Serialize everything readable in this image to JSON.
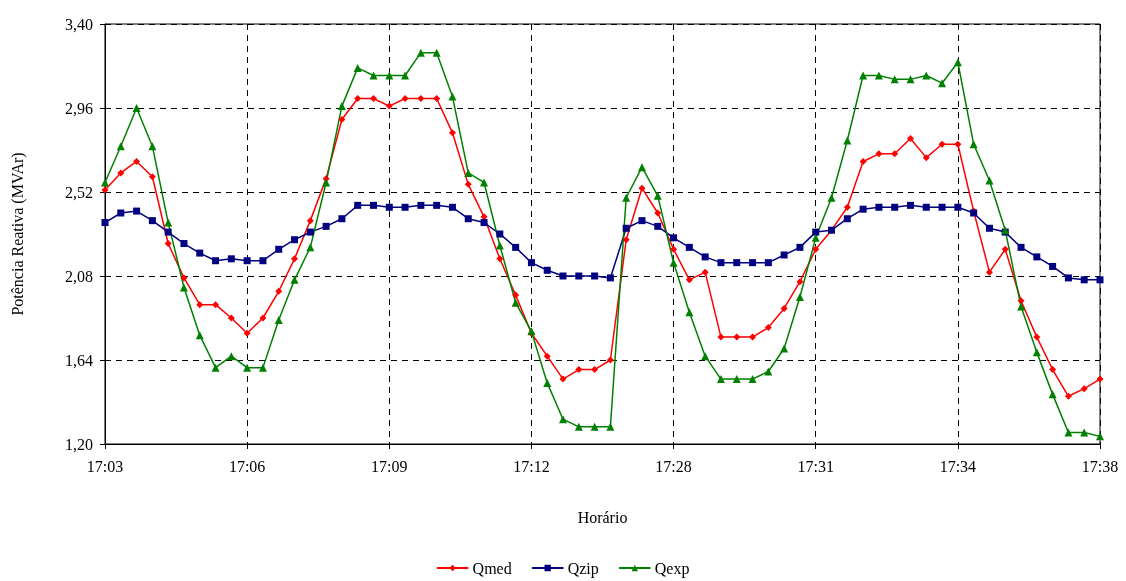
{
  "chart_data": {
    "type": "line",
    "xlabel": "Horário",
    "ylabel": "Potência Reativa (MVAr)",
    "categories": [
      "17:03",
      null,
      null,
      null,
      null,
      null,
      null,
      null,
      null,
      "17:06",
      null,
      null,
      null,
      null,
      null,
      null,
      null,
      null,
      "17:09",
      null,
      null,
      null,
      null,
      null,
      null,
      null,
      null,
      "17:12",
      null,
      null,
      null,
      null,
      null,
      null,
      null,
      null,
      "17:28",
      null,
      null,
      null,
      null,
      null,
      null,
      null,
      null,
      "17:31",
      null,
      null,
      null,
      null,
      null,
      null,
      null,
      null,
      "17:34",
      null,
      null,
      null,
      null,
      null,
      null,
      null,
      null,
      "17:38"
    ],
    "series": [
      {
        "name": "Qmed",
        "color": "#ff0000",
        "marker": "diamond",
        "values": [
          2.53,
          2.62,
          2.68,
          2.6,
          2.25,
          2.07,
          1.93,
          1.93,
          1.86,
          1.78,
          1.86,
          2.0,
          2.17,
          2.37,
          2.59,
          2.9,
          3.01,
          3.01,
          2.97,
          3.01,
          3.01,
          3.01,
          2.83,
          2.56,
          2.39,
          2.17,
          1.98,
          1.78,
          1.66,
          1.54,
          1.59,
          1.59,
          1.64,
          2.27,
          2.54,
          2.41,
          2.22,
          2.06,
          2.1,
          1.76,
          1.76,
          1.76,
          1.81,
          1.91,
          2.05,
          2.22,
          2.32,
          2.44,
          2.68,
          2.72,
          2.72,
          2.8,
          2.7,
          2.77,
          2.77,
          2.42,
          2.1,
          2.22,
          1.95,
          1.76,
          1.59,
          1.45,
          1.49,
          1.54
        ]
      },
      {
        "name": "Qzip",
        "color": "#000080",
        "marker": "square",
        "values": [
          2.36,
          2.41,
          2.42,
          2.37,
          2.31,
          2.25,
          2.2,
          2.16,
          2.17,
          2.16,
          2.16,
          2.22,
          2.27,
          2.31,
          2.34,
          2.38,
          2.45,
          2.45,
          2.44,
          2.44,
          2.45,
          2.45,
          2.44,
          2.38,
          2.36,
          2.3,
          2.23,
          2.15,
          2.11,
          2.08,
          2.08,
          2.08,
          2.07,
          2.33,
          2.37,
          2.34,
          2.28,
          2.23,
          2.18,
          2.15,
          2.15,
          2.15,
          2.15,
          2.19,
          2.23,
          2.31,
          2.32,
          2.38,
          2.43,
          2.44,
          2.44,
          2.45,
          2.44,
          2.44,
          2.44,
          2.41,
          2.33,
          2.31,
          2.23,
          2.18,
          2.13,
          2.07,
          2.06,
          2.06
        ]
      },
      {
        "name": "Qexp",
        "color": "#008000",
        "marker": "triangle",
        "values": [
          2.57,
          2.76,
          2.96,
          2.76,
          2.36,
          2.02,
          1.77,
          1.6,
          1.66,
          1.6,
          1.6,
          1.85,
          2.06,
          2.23,
          2.57,
          2.97,
          3.17,
          3.13,
          3.13,
          3.13,
          3.25,
          3.25,
          3.02,
          2.62,
          2.57,
          2.24,
          1.94,
          1.79,
          1.52,
          1.33,
          1.29,
          1.29,
          1.29,
          2.49,
          2.65,
          2.5,
          2.15,
          1.89,
          1.66,
          1.54,
          1.54,
          1.54,
          1.58,
          1.7,
          1.97,
          2.28,
          2.49,
          2.79,
          3.13,
          3.13,
          3.11,
          3.11,
          3.13,
          3.09,
          3.2,
          2.77,
          2.58,
          2.32,
          1.92,
          1.68,
          1.46,
          1.26,
          1.26,
          1.24
        ]
      }
    ],
    "ylim": [
      1.2,
      3.4
    ],
    "yticks": [
      {
        "value": 1.2,
        "label": "1,20"
      },
      {
        "value": 1.64,
        "label": "1,64"
      },
      {
        "value": 2.08,
        "label": "2,08"
      },
      {
        "value": 2.52,
        "label": "2,52"
      },
      {
        "value": 2.96,
        "label": "2,96"
      },
      {
        "value": 3.4,
        "label": "3,40"
      }
    ],
    "grid": true,
    "legend": "bottom",
    "line_style": "solid"
  }
}
